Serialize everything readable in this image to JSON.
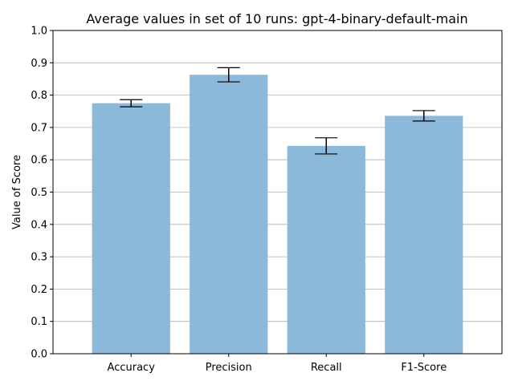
{
  "chart_data": {
    "type": "bar",
    "title": "Average values in set of 10 runs: gpt-4-binary-default-main",
    "xlabel": "",
    "ylabel": "Value of Score",
    "categories": [
      "Accuracy",
      "Precision",
      "Recall",
      "F1-Score"
    ],
    "values": [
      0.775,
      0.863,
      0.643,
      0.736
    ],
    "errors": [
      0.011,
      0.022,
      0.025,
      0.016
    ],
    "ylim": [
      0,
      1.0
    ],
    "yticks": [
      "0.0",
      "0.1",
      "0.2",
      "0.3",
      "0.4",
      "0.5",
      "0.6",
      "0.7",
      "0.8",
      "0.9",
      "1.0"
    ],
    "grid": "y",
    "bar_color": "#8cb8d9",
    "error_color": "#000000",
    "grid_color": "#b0b0b0"
  }
}
